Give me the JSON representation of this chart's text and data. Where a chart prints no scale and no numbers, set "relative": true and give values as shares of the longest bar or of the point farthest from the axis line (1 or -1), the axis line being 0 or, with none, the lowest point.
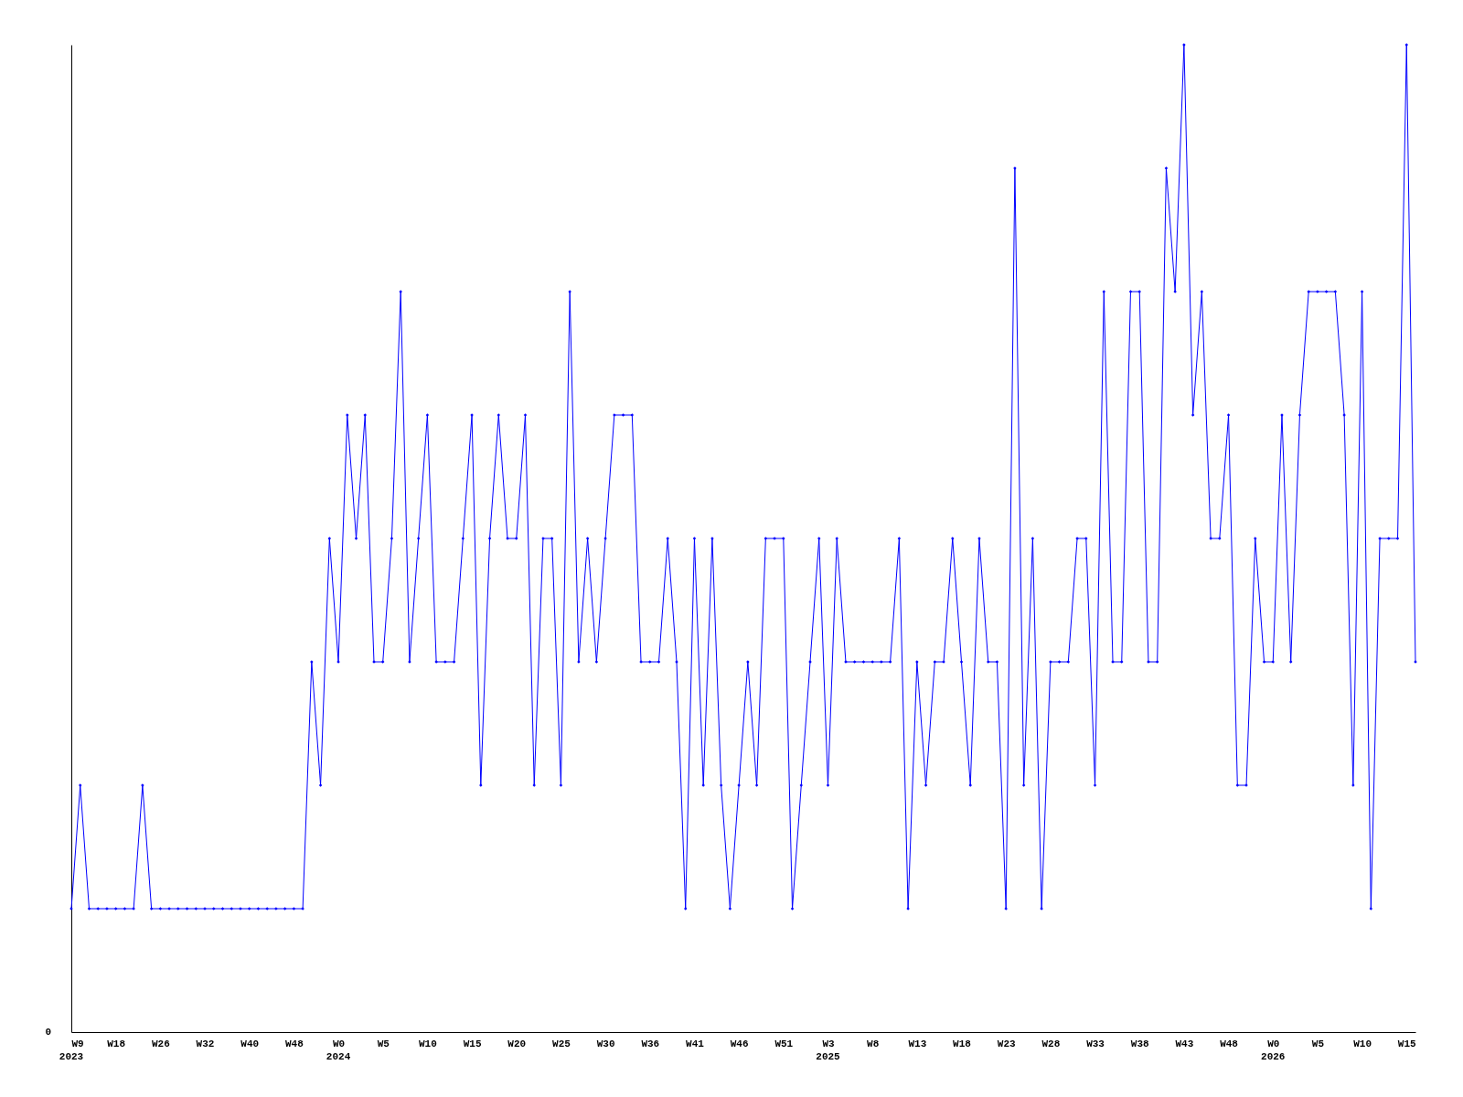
{
  "chart_data": {
    "type": "line",
    "relative": true,
    "grid": false,
    "marker": "diamond",
    "line_style": "solid",
    "annotations": [
      "0"
    ],
    "categories": [
      "W9\n2023",
      null,
      null,
      null,
      null,
      "W18",
      null,
      null,
      null,
      null,
      "W26",
      null,
      null,
      null,
      null,
      "W32",
      null,
      null,
      null,
      null,
      "W40",
      null,
      null,
      null,
      null,
      "W48",
      null,
      null,
      null,
      null,
      "W0\n2024",
      null,
      null,
      null,
      null,
      "W5",
      null,
      null,
      null,
      null,
      "W10",
      null,
      null,
      null,
      null,
      "W15",
      null,
      null,
      null,
      null,
      "W20",
      null,
      null,
      null,
      null,
      "W25",
      null,
      null,
      null,
      null,
      "W30",
      null,
      null,
      null,
      null,
      "W36",
      null,
      null,
      null,
      null,
      "W41",
      null,
      null,
      null,
      null,
      "W46",
      null,
      null,
      null,
      null,
      "W51",
      null,
      null,
      null,
      null,
      "W3\n2025",
      null,
      null,
      null,
      null,
      "W8",
      null,
      null,
      null,
      null,
      "W13",
      null,
      null,
      null,
      null,
      "W18",
      null,
      null,
      null,
      null,
      "W23",
      null,
      null,
      null,
      null,
      "W28",
      null,
      null,
      null,
      null,
      "W33",
      null,
      null,
      null,
      null,
      "W38",
      null,
      null,
      null,
      null,
      "W43",
      null,
      null,
      null,
      null,
      "W48",
      null,
      null,
      null,
      null,
      "W0\n2026",
      null,
      null,
      null,
      null,
      "W5",
      null,
      null,
      null,
      null,
      "W10",
      null,
      null,
      null,
      null,
      "W15",
      null
    ],
    "series": [
      {
        "color": "#0000ff",
        "values": [
          0.125,
          0.25,
          0.125,
          0.125,
          0.125,
          0.125,
          0.125,
          0.125,
          0.25,
          0.125,
          0.125,
          0.125,
          0.125,
          0.125,
          0.125,
          0.125,
          0.125,
          0.125,
          0.125,
          0.125,
          0.125,
          0.125,
          0.125,
          0.125,
          0.125,
          0.125,
          0.125,
          0.375,
          0.25,
          0.5,
          0.375,
          0.625,
          0.5,
          0.625,
          0.375,
          0.375,
          0.5,
          0.75,
          0.375,
          0.5,
          0.625,
          0.375,
          0.375,
          0.375,
          0.5,
          0.625,
          0.25,
          0.5,
          0.625,
          0.5,
          0.5,
          0.625,
          0.25,
          0.5,
          0.5,
          0.25,
          0.75,
          0.375,
          0.5,
          0.375,
          0.5,
          0.625,
          0.625,
          0.625,
          0.375,
          0.375,
          0.375,
          0.5,
          0.375,
          0.125,
          0.5,
          0.25,
          0.5,
          0.25,
          0.125,
          0.25,
          0.375,
          0.25,
          0.5,
          0.5,
          0.5,
          0.125,
          0.25,
          0.375,
          0.5,
          0.25,
          0.5,
          0.375,
          0.375,
          0.375,
          0.375,
          0.375,
          0.375,
          0.5,
          0.125,
          0.375,
          0.25,
          0.375,
          0.375,
          0.5,
          0.375,
          0.25,
          0.5,
          0.375,
          0.375,
          0.125,
          0.875,
          0.25,
          0.5,
          0.125,
          0.375,
          0.375,
          0.375,
          0.5,
          0.5,
          0.25,
          0.75,
          0.375,
          0.375,
          0.75,
          0.75,
          0.375,
          0.375,
          0.875,
          0.75,
          1,
          0.625,
          0.75,
          0.5,
          0.5,
          0.625,
          0.25,
          0.25,
          0.5,
          0.375,
          0.375,
          0.625,
          0.375,
          0.625,
          0.75,
          0.75,
          0.75,
          0.75,
          0.625,
          0.25,
          0.75,
          0.125,
          0.5,
          0.5,
          0.5,
          1,
          0.375
        ]
      }
    ]
  }
}
